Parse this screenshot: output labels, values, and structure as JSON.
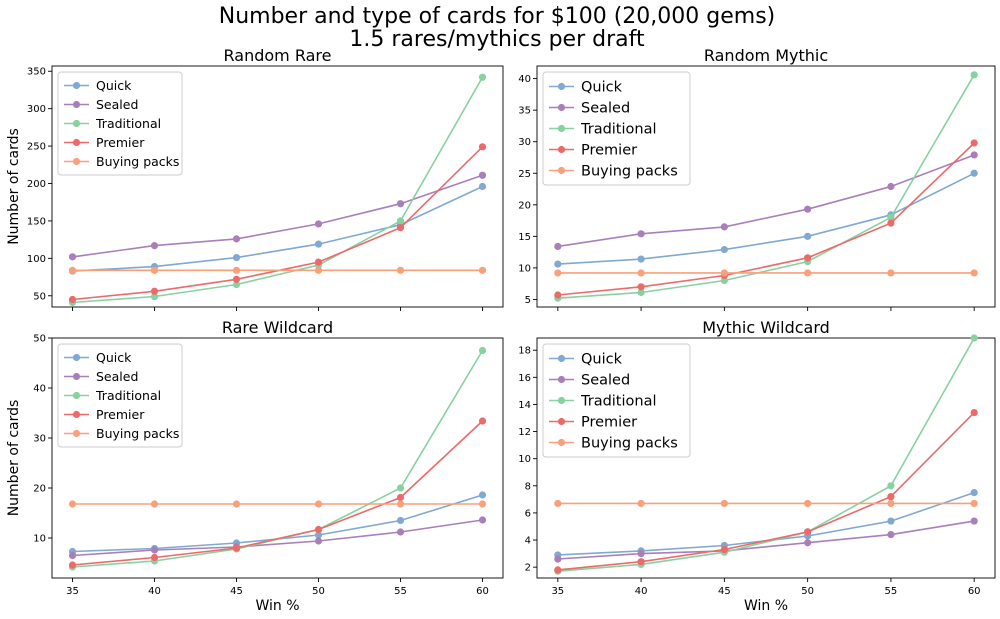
{
  "figure": {
    "title_line1": "Number and type of cards for $100 (20,000 gems)",
    "title_line2": "1.5 rares/mythics per draft"
  },
  "colors": {
    "Quick": "#7fa9d1",
    "Sealed": "#a97fba",
    "Traditional": "#88d1a0",
    "Premier": "#ec6a6a",
    "Buying packs": "#f9a07a"
  },
  "chart_data": [
    {
      "type": "line",
      "title": "Random Rare",
      "xlabel": "",
      "ylabel": "Number of cards",
      "x": [
        35,
        40,
        45,
        50,
        55,
        60
      ],
      "xlim": [
        33.75,
        61.25
      ],
      "ylim": [
        35,
        357
      ],
      "yticks": [
        50,
        100,
        150,
        200,
        250,
        300,
        350
      ],
      "xticklabels_shown": false,
      "legend": "upper-left",
      "legend_size": "small",
      "series": [
        {
          "name": "Quick",
          "values": [
            83,
            89,
            101,
            119,
            145,
            196
          ]
        },
        {
          "name": "Sealed",
          "values": [
            102,
            117,
            126,
            146,
            173,
            211
          ]
        },
        {
          "name": "Traditional",
          "values": [
            41,
            49,
            65,
            91,
            150,
            342
          ]
        },
        {
          "name": "Premier",
          "values": [
            45,
            56,
            72,
            95,
            141,
            249
          ]
        },
        {
          "name": "Buying packs",
          "values": [
            84,
            84,
            84,
            84,
            84,
            84
          ]
        }
      ]
    },
    {
      "type": "line",
      "title": "Random Mythic",
      "xlabel": "",
      "ylabel": "",
      "x": [
        35,
        40,
        45,
        50,
        55,
        60
      ],
      "xlim": [
        33.75,
        61.25
      ],
      "ylim": [
        3.8,
        42
      ],
      "yticks": [
        5,
        10,
        15,
        20,
        25,
        30,
        35,
        40
      ],
      "xticklabels_shown": false,
      "legend": "upper-left",
      "legend_size": "large",
      "series": [
        {
          "name": "Quick",
          "values": [
            10.6,
            11.4,
            12.9,
            15.0,
            18.4,
            25.0
          ]
        },
        {
          "name": "Sealed",
          "values": [
            13.4,
            15.4,
            16.5,
            19.3,
            22.9,
            27.9
          ]
        },
        {
          "name": "Traditional",
          "values": [
            5.2,
            6.1,
            8.0,
            11.0,
            18.0,
            40.6
          ]
        },
        {
          "name": "Premier",
          "values": [
            5.7,
            7.0,
            8.8,
            11.6,
            17.1,
            29.8
          ]
        },
        {
          "name": "Buying packs",
          "values": [
            9.2,
            9.2,
            9.2,
            9.2,
            9.2,
            9.2
          ]
        }
      ]
    },
    {
      "type": "line",
      "title": "Rare Wildcard",
      "xlabel": "Win %",
      "ylabel": "Number of cards",
      "x": [
        35,
        40,
        45,
        50,
        55,
        60
      ],
      "xlim": [
        33.75,
        61.25
      ],
      "ylim": [
        2,
        50
      ],
      "yticks": [
        10,
        20,
        30,
        40,
        50
      ],
      "xticklabels_shown": true,
      "legend": "upper-left",
      "legend_size": "small",
      "series": [
        {
          "name": "Quick",
          "values": [
            7.3,
            7.9,
            9.0,
            10.6,
            13.5,
            18.6
          ]
        },
        {
          "name": "Sealed",
          "values": [
            6.5,
            7.6,
            8.2,
            9.4,
            11.2,
            13.6
          ]
        },
        {
          "name": "Traditional",
          "values": [
            4.2,
            5.4,
            7.8,
            11.7,
            20.0,
            47.5
          ]
        },
        {
          "name": "Premier",
          "values": [
            4.6,
            6.1,
            8.0,
            11.7,
            18.1,
            33.4
          ]
        },
        {
          "name": "Buying packs",
          "values": [
            16.8,
            16.8,
            16.8,
            16.8,
            16.8,
            16.8
          ]
        }
      ]
    },
    {
      "type": "line",
      "title": "Mythic Wildcard",
      "xlabel": "Win %",
      "ylabel": "",
      "x": [
        35,
        40,
        45,
        50,
        55,
        60
      ],
      "xlim": [
        33.75,
        61.25
      ],
      "ylim": [
        1.2,
        18.9
      ],
      "yticks": [
        2,
        4,
        6,
        8,
        10,
        12,
        14,
        16,
        18
      ],
      "xticklabels_shown": true,
      "legend": "upper-left",
      "legend_size": "large",
      "series": [
        {
          "name": "Quick",
          "values": [
            2.9,
            3.2,
            3.6,
            4.3,
            5.4,
            7.5
          ]
        },
        {
          "name": "Sealed",
          "values": [
            2.6,
            3.0,
            3.2,
            3.8,
            4.4,
            5.4
          ]
        },
        {
          "name": "Traditional",
          "values": [
            1.7,
            2.2,
            3.1,
            4.6,
            8.0,
            18.9
          ]
        },
        {
          "name": "Premier",
          "values": [
            1.8,
            2.4,
            3.3,
            4.6,
            7.2,
            13.4
          ]
        },
        {
          "name": "Buying packs",
          "values": [
            6.7,
            6.7,
            6.7,
            6.7,
            6.7,
            6.7
          ]
        }
      ]
    }
  ]
}
